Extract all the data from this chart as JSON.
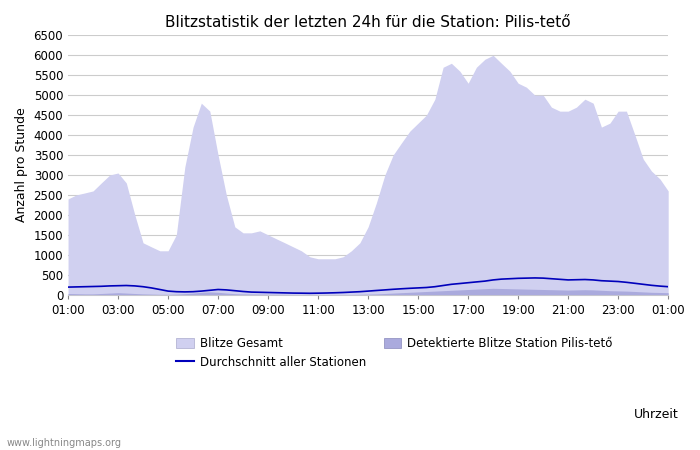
{
  "title": "Blitzstatistik der letzten 24h für die Station: Pilis-tető",
  "ylabel": "Anzahl pro Stunde",
  "xlabel": "Uhrzeit",
  "xlim": [
    0,
    24
  ],
  "ylim": [
    0,
    6500
  ],
  "yticks": [
    0,
    500,
    1000,
    1500,
    2000,
    2500,
    3000,
    3500,
    4000,
    4500,
    5000,
    5500,
    6000,
    6500
  ],
  "xtick_labels": [
    "01:00",
    "03:00",
    "05:00",
    "07:00",
    "09:00",
    "11:00",
    "13:00",
    "15:00",
    "17:00",
    "19:00",
    "21:00",
    "23:00",
    "01:00"
  ],
  "xtick_positions": [
    0,
    2,
    4,
    6,
    8,
    10,
    12,
    14,
    16,
    18,
    20,
    22,
    24
  ],
  "background_color": "#ffffff",
  "plot_bg_color": "#ffffff",
  "grid_color": "#cccccc",
  "fill_gesamt_color": "#d0d0f0",
  "fill_detektiert_color": "#aaaadd",
  "line_color": "#0000bb",
  "title_fontsize": 11,
  "axis_fontsize": 9,
  "tick_fontsize": 8.5,
  "legend_fontsize": 8.5,
  "watermark": "www.lightningmaps.org",
  "legend_label_gesamt": "Blitze Gesamt",
  "legend_label_avg": "Durchschnitt aller Stationen",
  "legend_label_det": "Detektierte Blitze Station Pilis-tető",
  "x_gesamt": [
    0,
    0.33,
    0.67,
    1,
    1.33,
    1.67,
    2,
    2.33,
    2.67,
    3,
    3.33,
    3.67,
    4,
    4.33,
    4.67,
    5,
    5.33,
    5.67,
    6,
    6.33,
    6.67,
    7,
    7.33,
    7.67,
    8,
    8.33,
    8.67,
    9,
    9.33,
    9.67,
    10,
    10.33,
    10.67,
    11,
    11.33,
    11.67,
    12,
    12.33,
    12.67,
    13,
    13.33,
    13.67,
    14,
    14.33,
    14.67,
    15,
    15.33,
    15.67,
    16,
    16.33,
    16.67,
    17,
    17.33,
    17.67,
    18,
    18.33,
    18.67,
    19,
    19.33,
    19.67,
    20,
    20.33,
    20.67,
    21,
    21.33,
    21.67,
    22,
    22.33,
    22.67,
    23,
    23.33,
    23.67,
    24
  ],
  "y_gesamt": [
    2400,
    2500,
    2550,
    2600,
    2800,
    3000,
    3050,
    2800,
    2000,
    1300,
    1200,
    1100,
    1100,
    1500,
    3200,
    4200,
    4800,
    4600,
    3500,
    2500,
    1700,
    1550,
    1550,
    1600,
    1500,
    1400,
    1300,
    1200,
    1100,
    950,
    900,
    900,
    900,
    950,
    1100,
    1300,
    1700,
    2300,
    3000,
    3500,
    3800,
    4100,
    4300,
    4500,
    4900,
    5700,
    5800,
    5600,
    5300,
    5700,
    5900,
    6000,
    5800,
    5600,
    5300,
    5200,
    5000,
    5000,
    4700,
    4600,
    4600,
    4700,
    4900,
    4800,
    4200,
    4300,
    4600,
    4600,
    4000,
    3400,
    3100,
    2900,
    2600
  ],
  "x_detektiert": [
    0,
    0.33,
    0.67,
    1,
    1.33,
    1.67,
    2,
    2.33,
    2.67,
    3,
    3.33,
    3.67,
    4,
    4.33,
    4.67,
    5,
    5.33,
    5.67,
    6,
    6.33,
    6.67,
    7,
    7.33,
    7.67,
    8,
    8.33,
    8.67,
    9,
    9.33,
    9.67,
    10,
    10.33,
    10.67,
    11,
    11.33,
    11.67,
    12,
    12.33,
    12.67,
    13,
    13.33,
    13.67,
    14,
    14.33,
    14.67,
    15,
    15.33,
    15.67,
    16,
    16.33,
    16.67,
    17,
    17.33,
    17.67,
    18,
    18.33,
    18.67,
    19,
    19.33,
    19.67,
    20,
    20.33,
    20.67,
    21,
    21.33,
    21.67,
    22,
    22.33,
    22.67,
    23,
    23.33,
    23.67,
    24
  ],
  "y_detektiert": [
    30,
    25,
    20,
    20,
    30,
    40,
    50,
    40,
    30,
    20,
    15,
    10,
    10,
    15,
    25,
    40,
    60,
    70,
    60,
    40,
    25,
    20,
    18,
    15,
    12,
    10,
    8,
    5,
    5,
    5,
    5,
    5,
    5,
    5,
    5,
    10,
    15,
    20,
    30,
    40,
    50,
    60,
    70,
    80,
    90,
    100,
    110,
    120,
    130,
    140,
    150,
    160,
    155,
    150,
    145,
    140,
    135,
    130,
    125,
    120,
    115,
    120,
    125,
    120,
    110,
    100,
    95,
    90,
    80,
    70,
    60,
    55,
    50
  ],
  "x_avg": [
    0,
    0.33,
    0.67,
    1,
    1.33,
    1.67,
    2,
    2.33,
    2.67,
    3,
    3.33,
    3.67,
    4,
    4.33,
    4.67,
    5,
    5.33,
    5.67,
    6,
    6.33,
    6.67,
    7,
    7.33,
    7.67,
    8,
    8.33,
    8.67,
    9,
    9.33,
    9.67,
    10,
    10.33,
    10.67,
    11,
    11.33,
    11.67,
    12,
    12.33,
    12.67,
    13,
    13.33,
    13.67,
    14,
    14.33,
    14.67,
    15,
    15.33,
    15.67,
    16,
    16.33,
    16.67,
    17,
    17.33,
    17.67,
    18,
    18.33,
    18.67,
    19,
    19.33,
    19.67,
    20,
    20.33,
    20.67,
    21,
    21.33,
    21.67,
    22,
    22.33,
    22.67,
    23,
    23.33,
    23.67,
    24
  ],
  "y_avg": [
    190,
    195,
    200,
    205,
    210,
    220,
    225,
    230,
    220,
    200,
    170,
    130,
    90,
    75,
    70,
    75,
    90,
    110,
    130,
    120,
    100,
    80,
    65,
    60,
    55,
    50,
    45,
    40,
    38,
    35,
    38,
    42,
    48,
    55,
    65,
    75,
    90,
    105,
    120,
    135,
    148,
    160,
    170,
    180,
    200,
    230,
    260,
    280,
    300,
    320,
    340,
    370,
    390,
    400,
    410,
    415,
    420,
    415,
    400,
    385,
    370,
    375,
    380,
    370,
    350,
    340,
    330,
    310,
    285,
    260,
    235,
    215,
    200
  ]
}
